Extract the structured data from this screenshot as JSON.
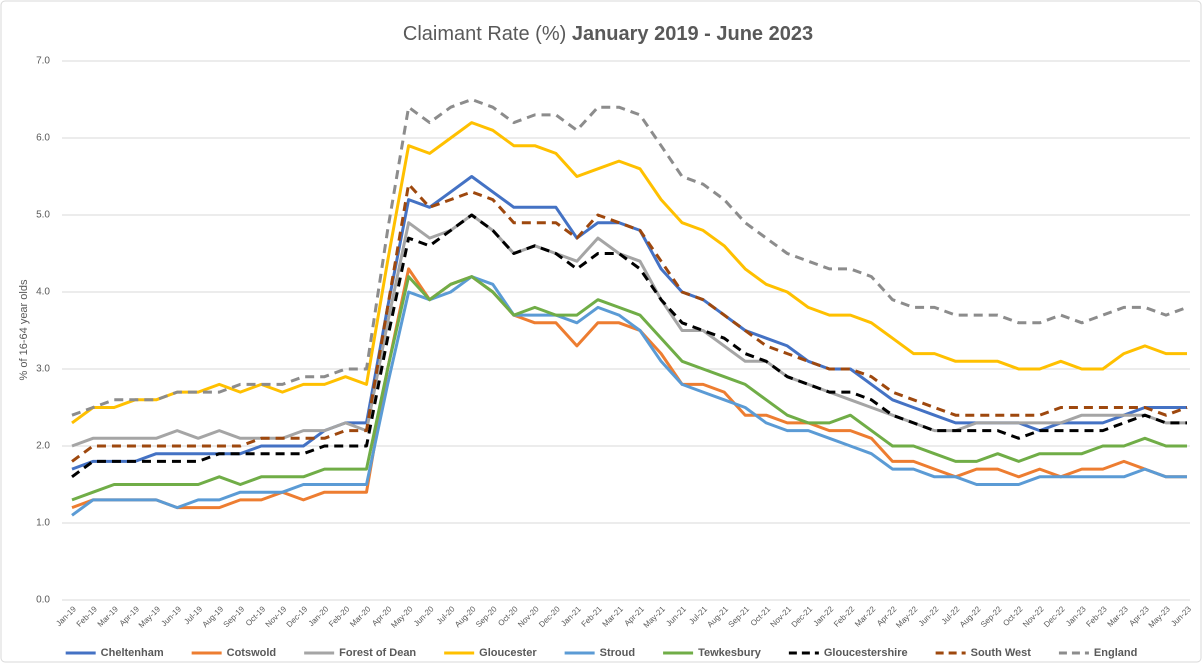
{
  "chart_data": {
    "type": "line",
    "title_parts": [
      "Claimant Rate (%)",
      "January 2019 - June 2023"
    ],
    "y_label": "% of 16-64 year olds",
    "categories": [
      "Jan-19",
      "Feb-19",
      "Mar-19",
      "Apr-19",
      "May-19",
      "Jun-19",
      "Jul-19",
      "Aug-19",
      "Sep-19",
      "Oct-19",
      "Nov-19",
      "Dec-19",
      "Jan-20",
      "Feb-20",
      "Mar-20",
      "Apr-20",
      "May-20",
      "Jun-20",
      "Jul-20",
      "Aug-20",
      "Sep-20",
      "Oct-20",
      "Nov-20",
      "Dec-20",
      "Jan-21",
      "Feb-21",
      "Mar-21",
      "Apr-21",
      "May-21",
      "Jun-21",
      "Jul-21",
      "Aug-21",
      "Sep-21",
      "Oct-21",
      "Nov-21",
      "Dec-21",
      "Jan-22",
      "Feb-22",
      "Mar-22",
      "Apr-22",
      "May-22",
      "Jun-22",
      "Jul-22",
      "Aug-22",
      "Sep-22",
      "Oct-22",
      "Nov-22",
      "Dec-22",
      "Jan-23",
      "Feb-23",
      "Mar-23",
      "Apr-23",
      "May-23",
      "Jun-23"
    ],
    "ylim": [
      0,
      7
    ],
    "yticks": [
      {
        "value": 0,
        "label": "0.0"
      },
      {
        "value": 1,
        "label": "1.0"
      },
      {
        "value": 2,
        "label": "2.0"
      },
      {
        "value": 3,
        "label": "3.0"
      },
      {
        "value": 4,
        "label": "4.0"
      },
      {
        "value": 5,
        "label": "5.0"
      },
      {
        "value": 6,
        "label": "6.0"
      },
      {
        "value": 7,
        "label": "7.0"
      }
    ],
    "grid": true,
    "legend": "bottom",
    "series": [
      {
        "name": "Cheltenham",
        "color": "#4472c4",
        "dash": false,
        "values": [
          1.7,
          1.8,
          1.8,
          1.8,
          1.9,
          1.9,
          1.9,
          1.9,
          1.9,
          2.0,
          2.0,
          2.0,
          2.2,
          2.3,
          2.3,
          3.8,
          5.2,
          5.1,
          5.3,
          5.5,
          5.3,
          5.1,
          5.1,
          5.1,
          4.7,
          4.9,
          4.9,
          4.8,
          4.3,
          4.0,
          3.9,
          3.7,
          3.5,
          3.4,
          3.3,
          3.1,
          3.0,
          3.0,
          2.8,
          2.6,
          2.5,
          2.4,
          2.3,
          2.3,
          2.3,
          2.3,
          2.2,
          2.3,
          2.3,
          2.3,
          2.4,
          2.5,
          2.5,
          2.5
        ]
      },
      {
        "name": "Cotswold",
        "color": "#ed7d31",
        "dash": false,
        "values": [
          1.2,
          1.3,
          1.3,
          1.3,
          1.3,
          1.2,
          1.2,
          1.2,
          1.3,
          1.3,
          1.4,
          1.3,
          1.4,
          1.4,
          1.4,
          3.0,
          4.3,
          3.9,
          4.1,
          4.2,
          4.0,
          3.7,
          3.6,
          3.6,
          3.3,
          3.6,
          3.6,
          3.5,
          3.2,
          2.8,
          2.8,
          2.7,
          2.4,
          2.4,
          2.3,
          2.3,
          2.2,
          2.2,
          2.1,
          1.8,
          1.8,
          1.7,
          1.6,
          1.7,
          1.7,
          1.6,
          1.7,
          1.6,
          1.7,
          1.7,
          1.8,
          1.7,
          1.6,
          1.6
        ]
      },
      {
        "name": "Forest of Dean",
        "color": "#a5a5a5",
        "dash": false,
        "values": [
          2.0,
          2.1,
          2.1,
          2.1,
          2.1,
          2.2,
          2.1,
          2.2,
          2.1,
          2.1,
          2.1,
          2.2,
          2.2,
          2.3,
          2.2,
          3.6,
          4.9,
          4.7,
          4.8,
          5.0,
          4.8,
          4.5,
          4.6,
          4.5,
          4.4,
          4.7,
          4.5,
          4.4,
          3.9,
          3.5,
          3.5,
          3.3,
          3.1,
          3.1,
          2.9,
          2.8,
          2.7,
          2.6,
          2.5,
          2.4,
          2.3,
          2.2,
          2.2,
          2.3,
          2.3,
          2.3,
          2.3,
          2.3,
          2.4,
          2.4,
          2.4,
          2.4,
          2.3,
          2.3
        ]
      },
      {
        "name": "Gloucester",
        "color": "#ffc000",
        "dash": false,
        "values": [
          2.3,
          2.5,
          2.5,
          2.6,
          2.6,
          2.7,
          2.7,
          2.8,
          2.7,
          2.8,
          2.7,
          2.8,
          2.8,
          2.9,
          2.8,
          4.4,
          5.9,
          5.8,
          6.0,
          6.2,
          6.1,
          5.9,
          5.9,
          5.8,
          5.5,
          5.6,
          5.7,
          5.6,
          5.2,
          4.9,
          4.8,
          4.6,
          4.3,
          4.1,
          4.0,
          3.8,
          3.7,
          3.7,
          3.6,
          3.4,
          3.2,
          3.2,
          3.1,
          3.1,
          3.1,
          3.0,
          3.0,
          3.1,
          3.0,
          3.0,
          3.2,
          3.3,
          3.2,
          3.2
        ]
      },
      {
        "name": "Stroud",
        "color": "#5b9bd5",
        "dash": false,
        "values": [
          1.1,
          1.3,
          1.3,
          1.3,
          1.3,
          1.2,
          1.3,
          1.3,
          1.4,
          1.4,
          1.4,
          1.5,
          1.5,
          1.5,
          1.5,
          2.8,
          4.0,
          3.9,
          4.0,
          4.2,
          4.1,
          3.7,
          3.7,
          3.7,
          3.6,
          3.8,
          3.7,
          3.5,
          3.1,
          2.8,
          2.7,
          2.6,
          2.5,
          2.3,
          2.2,
          2.2,
          2.1,
          2.0,
          1.9,
          1.7,
          1.7,
          1.6,
          1.6,
          1.5,
          1.5,
          1.5,
          1.6,
          1.6,
          1.6,
          1.6,
          1.6,
          1.7,
          1.6,
          1.6
        ]
      },
      {
        "name": "Tewkesbury",
        "color": "#70ad47",
        "dash": false,
        "values": [
          1.3,
          1.4,
          1.5,
          1.5,
          1.5,
          1.5,
          1.5,
          1.6,
          1.5,
          1.6,
          1.6,
          1.6,
          1.7,
          1.7,
          1.7,
          3.0,
          4.2,
          3.9,
          4.1,
          4.2,
          4.0,
          3.7,
          3.8,
          3.7,
          3.7,
          3.9,
          3.8,
          3.7,
          3.4,
          3.1,
          3.0,
          2.9,
          2.8,
          2.6,
          2.4,
          2.3,
          2.3,
          2.4,
          2.2,
          2.0,
          2.0,
          1.9,
          1.8,
          1.8,
          1.9,
          1.8,
          1.9,
          1.9,
          1.9,
          2.0,
          2.0,
          2.1,
          2.0,
          2.0
        ]
      },
      {
        "name": "Gloucestershire",
        "color": "#000000",
        "dash": true,
        "values": [
          1.6,
          1.8,
          1.8,
          1.8,
          1.8,
          1.8,
          1.8,
          1.9,
          1.9,
          1.9,
          1.9,
          1.9,
          2.0,
          2.0,
          2.0,
          3.4,
          4.7,
          4.6,
          4.8,
          5.0,
          4.8,
          4.5,
          4.6,
          4.5,
          4.3,
          4.5,
          4.5,
          4.3,
          3.9,
          3.6,
          3.5,
          3.4,
          3.2,
          3.1,
          2.9,
          2.8,
          2.7,
          2.7,
          2.6,
          2.4,
          2.3,
          2.2,
          2.2,
          2.2,
          2.2,
          2.1,
          2.2,
          2.2,
          2.2,
          2.2,
          2.3,
          2.4,
          2.3,
          2.3
        ]
      },
      {
        "name": "South West",
        "color": "#9e480e",
        "dash": true,
        "values": [
          1.8,
          2.0,
          2.0,
          2.0,
          2.0,
          2.0,
          2.0,
          2.0,
          2.0,
          2.1,
          2.1,
          2.1,
          2.1,
          2.2,
          2.2,
          3.8,
          5.4,
          5.1,
          5.2,
          5.3,
          5.2,
          4.9,
          4.9,
          4.9,
          4.7,
          5.0,
          4.9,
          4.8,
          4.4,
          4.0,
          3.9,
          3.7,
          3.5,
          3.3,
          3.2,
          3.1,
          3.0,
          3.0,
          2.9,
          2.7,
          2.6,
          2.5,
          2.4,
          2.4,
          2.4,
          2.4,
          2.4,
          2.5,
          2.5,
          2.5,
          2.5,
          2.5,
          2.4,
          2.5
        ]
      },
      {
        "name": "England",
        "color": "#8c8c8c",
        "dash": true,
        "values": [
          2.4,
          2.5,
          2.6,
          2.6,
          2.6,
          2.7,
          2.7,
          2.7,
          2.8,
          2.8,
          2.8,
          2.9,
          2.9,
          3.0,
          3.0,
          4.8,
          6.4,
          6.2,
          6.4,
          6.5,
          6.4,
          6.2,
          6.3,
          6.3,
          6.1,
          6.4,
          6.4,
          6.3,
          5.9,
          5.5,
          5.4,
          5.2,
          4.9,
          4.7,
          4.5,
          4.4,
          4.3,
          4.3,
          4.2,
          3.9,
          3.8,
          3.8,
          3.7,
          3.7,
          3.7,
          3.6,
          3.6,
          3.7,
          3.6,
          3.7,
          3.8,
          3.8,
          3.7,
          3.8
        ]
      }
    ]
  }
}
